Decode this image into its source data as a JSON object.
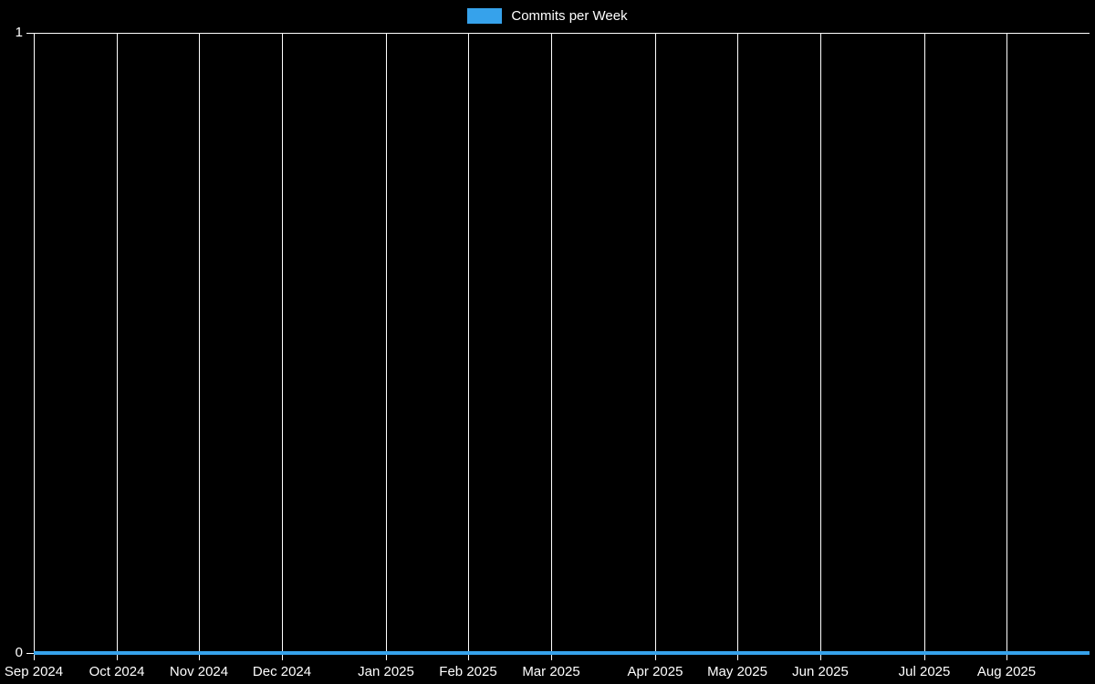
{
  "legend": {
    "items": [
      {
        "label": "Commits per Week",
        "color": "#36a2eb"
      }
    ]
  },
  "chart_data": {
    "type": "line",
    "title": "",
    "series": [
      {
        "name": "Commits per Week",
        "color": "#36a2eb",
        "values": [
          0,
          0,
          0,
          0,
          0,
          0,
          0,
          0,
          0,
          0,
          0,
          0,
          0,
          0,
          0,
          0,
          0,
          0,
          0,
          0,
          0,
          0,
          0,
          0,
          0,
          0,
          0,
          0,
          0,
          0,
          0,
          0,
          0,
          0,
          0,
          0,
          0,
          0,
          0,
          0,
          0,
          0,
          0,
          0,
          0,
          0,
          0,
          0,
          0,
          0,
          0,
          0
        ]
      }
    ],
    "x_unit": "week",
    "weeks_total": 51,
    "x_ticks": [
      {
        "label": "Sep 2024",
        "week": 0
      },
      {
        "label": "Oct 2024",
        "week": 4
      },
      {
        "label": "Nov 2024",
        "week": 8
      },
      {
        "label": "Dec 2024",
        "week": 12
      },
      {
        "label": "Jan 2025",
        "week": 17
      },
      {
        "label": "Feb 2025",
        "week": 21
      },
      {
        "label": "Mar 2025",
        "week": 25
      },
      {
        "label": "Apr 2025",
        "week": 30
      },
      {
        "label": "May 2025",
        "week": 34
      },
      {
        "label": "Jun 2025",
        "week": 38
      },
      {
        "label": "Jul 2025",
        "week": 43
      },
      {
        "label": "Aug 2025",
        "week": 47
      }
    ],
    "y_ticks": [
      {
        "label": "1",
        "value": 1
      },
      {
        "label": "0",
        "value": 0
      }
    ],
    "ylim": [
      0,
      1
    ],
    "grid": true,
    "legend_position": "top-center",
    "colors": {
      "background": "#000000",
      "grid": "#ffffff",
      "text": "#ffffff",
      "line": "#36a2eb"
    }
  }
}
